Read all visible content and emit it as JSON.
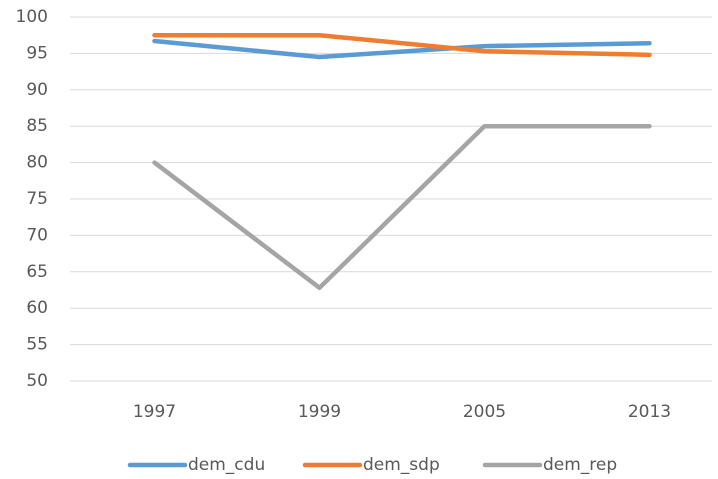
{
  "chart_data": {
    "type": "line",
    "categories": [
      "1997",
      "1999",
      "2005",
      "2013"
    ],
    "series": [
      {
        "name": "dem_cdu",
        "color": "#5b9bd5",
        "values": [
          96.7,
          94.5,
          96.0,
          96.4
        ]
      },
      {
        "name": "dem_sdp",
        "color": "#ed7d31",
        "values": [
          97.5,
          97.5,
          95.3,
          94.8
        ]
      },
      {
        "name": "dem_rep",
        "color": "#a5a5a5",
        "values": [
          80,
          62.8,
          85,
          85
        ]
      }
    ],
    "ylim": [
      50,
      100
    ],
    "yticks": [
      50,
      55,
      60,
      65,
      70,
      75,
      80,
      85,
      90,
      95,
      100
    ],
    "grid": true,
    "legend": "bottom"
  }
}
